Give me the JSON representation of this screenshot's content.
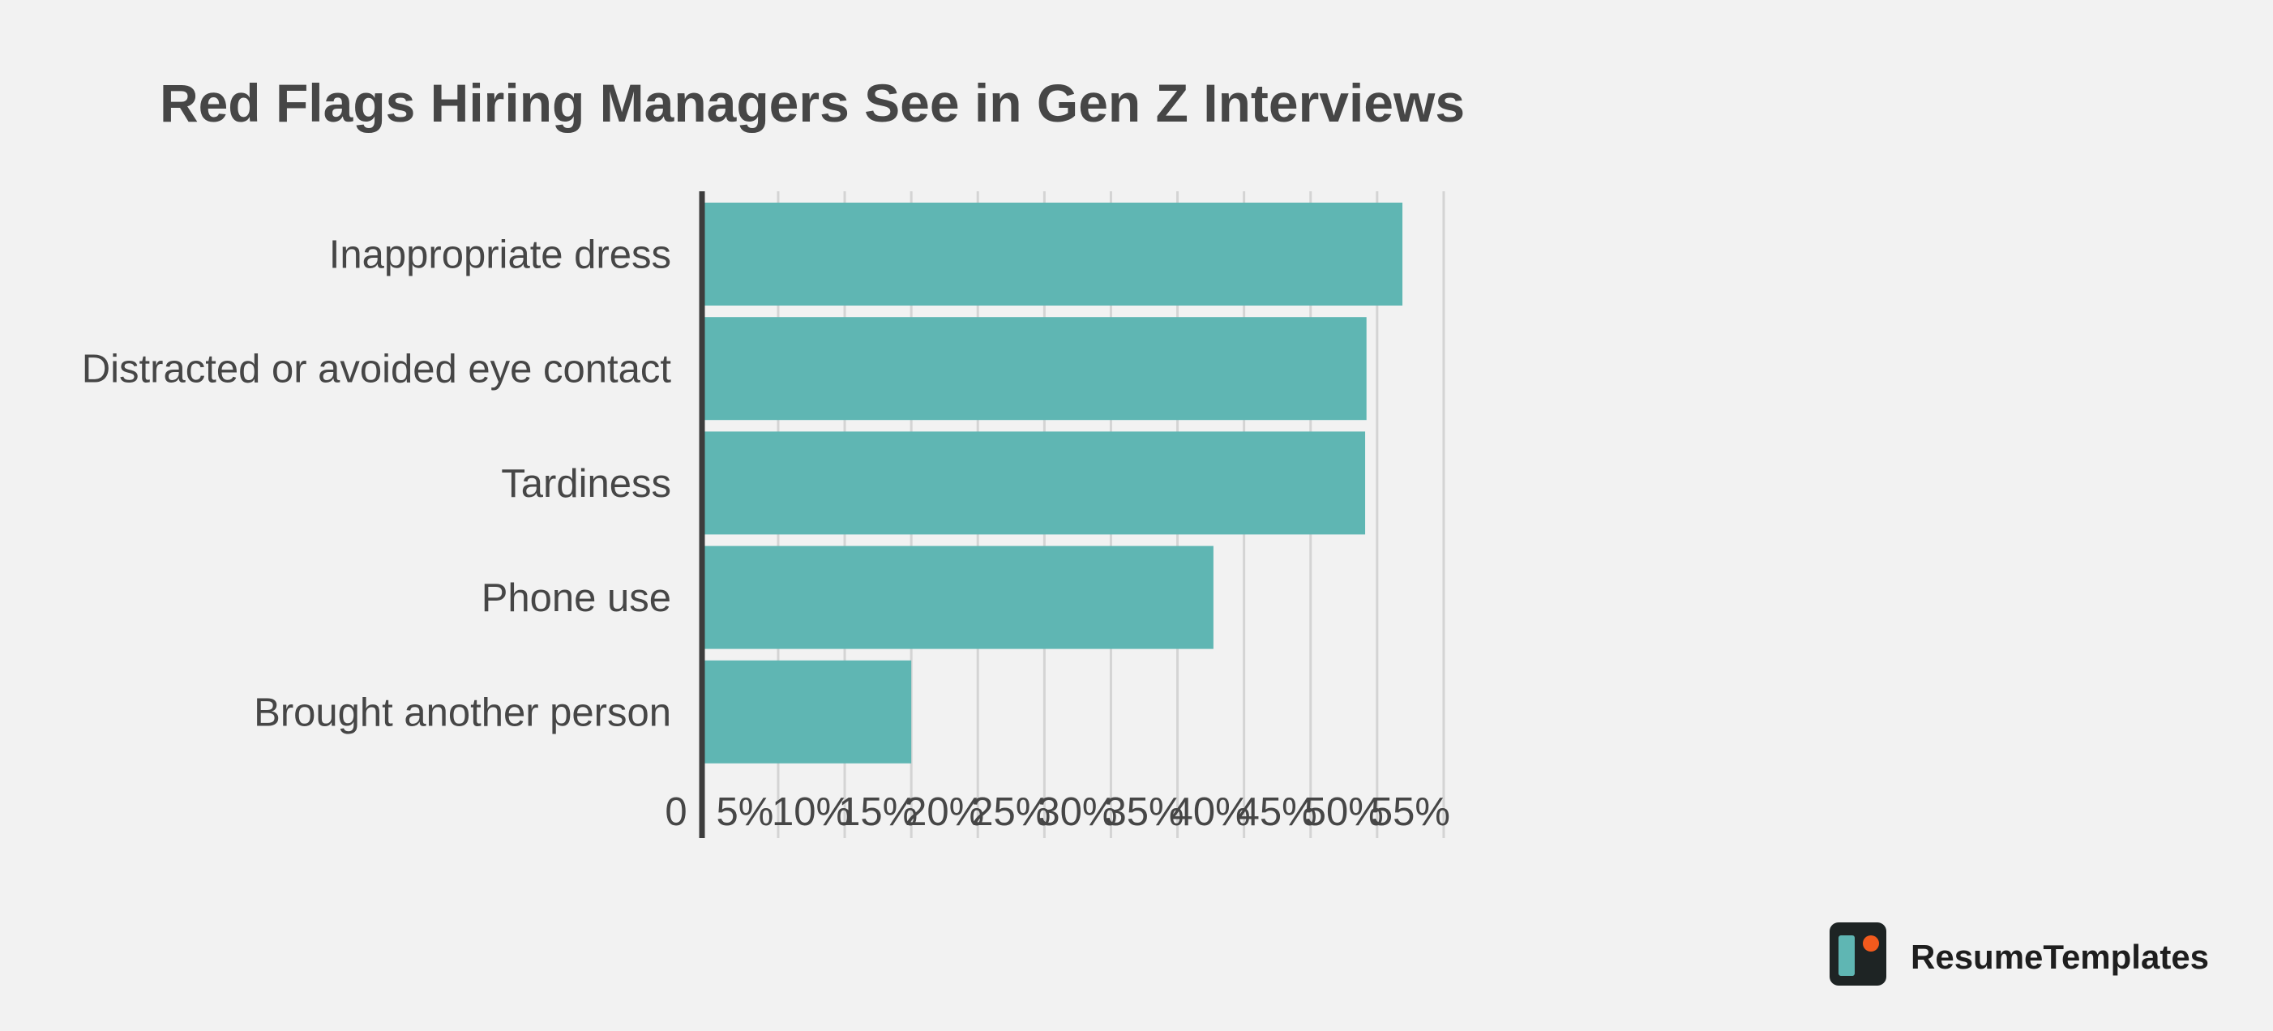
{
  "chart_data": {
    "type": "bar",
    "orientation": "horizontal",
    "title": "Red Flags Hiring Managers See in Gen Z Interviews",
    "categories": [
      "Inappropriate dress",
      "Distracted or avoided eye contact",
      "Tardiness",
      "Phone use",
      "Brought another person"
    ],
    "values": [
      52.5,
      49.8,
      49.7,
      38.3,
      15.6
    ],
    "value_unit": "%",
    "xlim": [
      0,
      55
    ],
    "x_ticks": [
      0,
      5,
      10,
      15,
      20,
      25,
      30,
      35,
      40,
      45,
      50,
      55
    ],
    "x_tick_labels": [
      "0",
      "5%",
      "10%",
      "15%",
      "20%",
      "25%",
      "30%",
      "35%",
      "40%",
      "45%",
      "50%",
      "55%"
    ],
    "grid": "vertical",
    "legend": "none",
    "xlabel": "",
    "ylabel": "",
    "colors": {
      "bar": "#5fb6b3",
      "grid": "#d4d4d4",
      "axis": "#3d3d3d",
      "text": "#464646",
      "background": "#f2f2f2"
    }
  },
  "branding": {
    "name": "ResumeTemplates",
    "icon": "resume-templates-logo-icon",
    "logo_colors": {
      "frame": "#1e2424",
      "bar": "#5fb6b3",
      "dot": "#f25a1d"
    }
  }
}
